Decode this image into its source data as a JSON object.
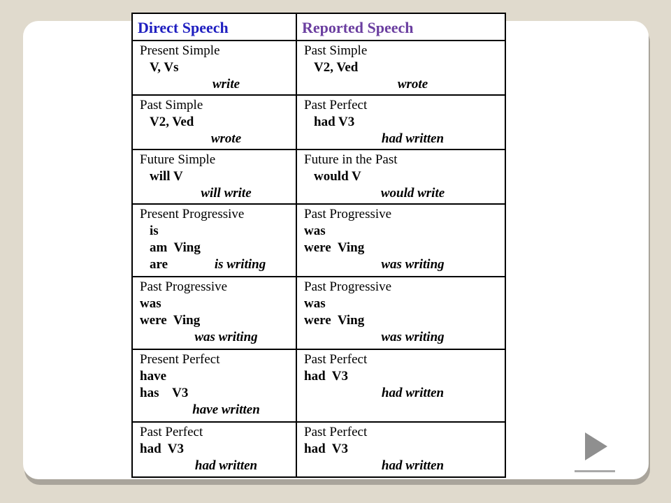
{
  "colors": {
    "background": "#e0dacd",
    "slide": "#ffffff",
    "slide_shadow": "#a9a49b",
    "table_border": "#000000",
    "direct_header": "#1f1fc0",
    "reported_header": "#6b3fa0",
    "arrow_gray": "#8f8f8f"
  },
  "table": {
    "headers": [
      {
        "label": "Direct Speech",
        "color": "#1f1fc0"
      },
      {
        "label": "Reported Speech",
        "color": "#6b3fa0"
      }
    ],
    "rows": [
      {
        "cells": [
          {
            "lines": [
              [
                {
                  "t": "Present Simple",
                  "s": "name",
                  "ind": 1
                }
              ],
              [
                {
                  "t": "V, Vs",
                  "s": "form",
                  "ind": 2
                }
              ],
              [
                {
                  "t": "write",
                  "s": "ex"
                }
              ]
            ]
          },
          {
            "lines": [
              [
                {
                  "t": "Past Simple",
                  "s": "name",
                  "ind": 1
                }
              ],
              [
                {
                  "t": "V2, Ved",
                  "s": "form",
                  "ind": 2
                }
              ],
              [
                {
                  "t": "wrote",
                  "s": "ex"
                }
              ]
            ]
          }
        ]
      },
      {
        "cells": [
          {
            "lines": [
              [
                {
                  "t": "Past Simple",
                  "s": "name",
                  "ind": 1
                }
              ],
              [
                {
                  "t": "V2, Ved",
                  "s": "form",
                  "ind": 2
                }
              ],
              [
                {
                  "t": "wrote",
                  "s": "ex"
                }
              ]
            ]
          },
          {
            "lines": [
              [
                {
                  "t": "Past Perfect",
                  "s": "name",
                  "ind": 1
                }
              ],
              [
                {
                  "t": "had V3",
                  "s": "form",
                  "ind": 2
                }
              ],
              [
                {
                  "t": "had written",
                  "s": "ex"
                }
              ]
            ]
          }
        ]
      },
      {
        "cells": [
          {
            "lines": [
              [
                {
                  "t": "Future Simple",
                  "s": "name",
                  "ind": 1
                }
              ],
              [
                {
                  "t": "will V",
                  "s": "form",
                  "ind": 2
                }
              ],
              [
                {
                  "t": "will write",
                  "s": "ex"
                }
              ]
            ]
          },
          {
            "lines": [
              [
                {
                  "t": "Future in the Past",
                  "s": "name",
                  "ind": 1
                }
              ],
              [
                {
                  "t": "would V",
                  "s": "form",
                  "ind": 2
                }
              ],
              [
                {
                  "t": "would write",
                  "s": "ex"
                }
              ]
            ]
          }
        ]
      },
      {
        "cells": [
          {
            "lines": [
              [
                {
                  "t": "Present Progressive",
                  "s": "name",
                  "ind": 1
                }
              ],
              [
                {
                  "t": "is",
                  "s": "form",
                  "ind": 2
                }
              ],
              [
                {
                  "t": "am  Ving",
                  "s": "form",
                  "ind": 2
                }
              ],
              [
                {
                  "t": "are",
                  "s": "form",
                  "ind": 2
                },
                {
                  "t": "is writing",
                  "s": "ex"
                }
              ]
            ]
          },
          {
            "lines": [
              [
                {
                  "t": "Past Progressive",
                  "s": "name",
                  "ind": 1
                }
              ],
              [
                {
                  "t": "was",
                  "s": "form",
                  "ind": 1
                }
              ],
              [
                {
                  "t": "were  Ving",
                  "s": "form",
                  "ind": 1
                }
              ],
              [
                {
                  "t": "was writing",
                  "s": "ex"
                }
              ]
            ]
          }
        ]
      },
      {
        "cells": [
          {
            "lines": [
              [
                {
                  "t": "Past Progressive",
                  "s": "name",
                  "ind": 1
                }
              ],
              [
                {
                  "t": "was",
                  "s": "form",
                  "ind": 1
                }
              ],
              [
                {
                  "t": "were  Ving",
                  "s": "form",
                  "ind": 1
                }
              ],
              [
                {
                  "t": "was writing",
                  "s": "ex"
                }
              ]
            ]
          },
          {
            "lines": [
              [
                {
                  "t": "Past Progressive",
                  "s": "name",
                  "ind": 1
                }
              ],
              [
                {
                  "t": "was",
                  "s": "form",
                  "ind": 1
                }
              ],
              [
                {
                  "t": "were  Ving",
                  "s": "form",
                  "ind": 1
                }
              ],
              [
                {
                  "t": "was writing",
                  "s": "ex"
                }
              ]
            ]
          }
        ]
      },
      {
        "cells": [
          {
            "lines": [
              [
                {
                  "t": "Present Perfect",
                  "s": "name",
                  "ind": 1
                }
              ],
              [
                {
                  "t": "have",
                  "s": "form",
                  "ind": 1
                }
              ],
              [
                {
                  "t": "has    V3",
                  "s": "form",
                  "ind": 1
                }
              ],
              [
                {
                  "t": "have written",
                  "s": "ex"
                }
              ]
            ]
          },
          {
            "lines": [
              [
                {
                  "t": "Past Perfect",
                  "s": "name",
                  "ind": 1
                }
              ],
              [
                {
                  "t": "had  V3",
                  "s": "form",
                  "ind": 1
                }
              ],
              [
                {
                  "t": "had written",
                  "s": "ex"
                }
              ]
            ]
          }
        ]
      },
      {
        "cells": [
          {
            "lines": [
              [
                {
                  "t": "Past Perfect",
                  "s": "name",
                  "ind": 1
                }
              ],
              [
                {
                  "t": "had  V3",
                  "s": "form",
                  "ind": 1
                }
              ],
              [
                {
                  "t": "had written",
                  "s": "ex"
                }
              ]
            ]
          },
          {
            "lines": [
              [
                {
                  "t": "Past Perfect",
                  "s": "name",
                  "ind": 1
                }
              ],
              [
                {
                  "t": "had  V3",
                  "s": "form",
                  "ind": 1
                }
              ],
              [
                {
                  "t": "had written",
                  "s": "ex"
                }
              ]
            ]
          }
        ]
      }
    ]
  },
  "nav": {
    "next_icon": "play-triangle",
    "arrow_color": "#8f8f8f"
  }
}
